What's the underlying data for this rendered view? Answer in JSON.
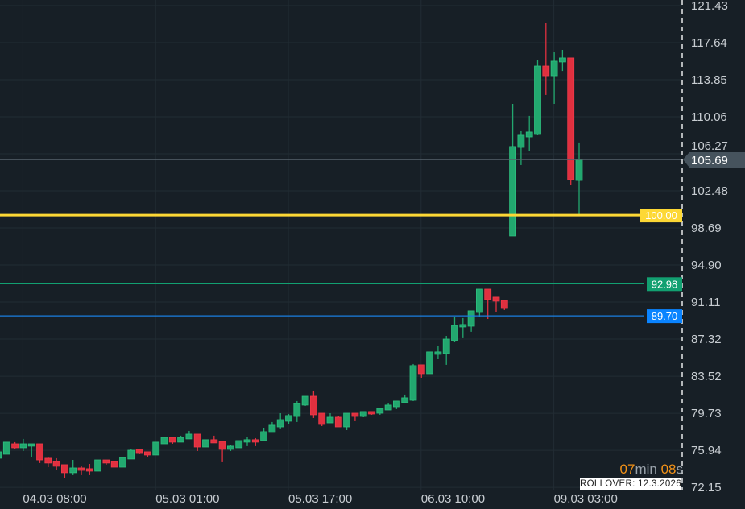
{
  "chart_data": {
    "type": "candlestick",
    "y_ticks": [
      "121.43",
      "117.64",
      "113.85",
      "110.06",
      "106.27",
      "102.48",
      "98.69",
      "94.90",
      "91.11",
      "87.32",
      "83.52",
      "79.73",
      "75.94",
      "72.15"
    ],
    "x_ticks": [
      {
        "label": "04.03 08:00",
        "candle": 3
      },
      {
        "label": "05.03 01:00",
        "candle": 19
      },
      {
        "label": "05.03 17:00",
        "candle": 35
      },
      {
        "label": "06.03 10:00",
        "candle": 51
      },
      {
        "label": "09.03 03:00",
        "candle": 67
      }
    ],
    "ylim": [
      72.15,
      121.43
    ],
    "grid": true,
    "colors": {
      "up": "#22a86f",
      "down": "#e0303f",
      "background": "#171f26",
      "grid": "#222c34"
    },
    "candles": [
      [
        75.13,
        75.79,
        75.13,
        75.79
      ],
      [
        75.54,
        76.78,
        75.54,
        76.78
      ],
      [
        76.61,
        76.78,
        76.12,
        76.2
      ],
      [
        76.2,
        77.11,
        75.87,
        76.61
      ],
      [
        76.37,
        76.61,
        75.29,
        76.61
      ],
      [
        76.61,
        76.61,
        74.64,
        74.96
      ],
      [
        75.13,
        75.29,
        74.22,
        74.64
      ],
      [
        74.8,
        75.13,
        73.97,
        74.31
      ],
      [
        74.47,
        74.47,
        73.07,
        73.65
      ],
      [
        73.65,
        74.96,
        73.4,
        74.14
      ],
      [
        74.14,
        74.31,
        73.4,
        73.89
      ],
      [
        74.06,
        74.55,
        73.4,
        73.81
      ],
      [
        73.81,
        74.96,
        73.81,
        74.96
      ],
      [
        74.96,
        74.96,
        74.47,
        74.64
      ],
      [
        74.8,
        74.8,
        74.22,
        74.22
      ],
      [
        74.22,
        75.21,
        74.22,
        75.21
      ],
      [
        75.05,
        76.04,
        75.05,
        75.95
      ],
      [
        76.04,
        76.04,
        75.54,
        75.62
      ],
      [
        75.79,
        75.79,
        75.29,
        75.46
      ],
      [
        75.46,
        76.78,
        75.46,
        76.78
      ],
      [
        76.61,
        77.27,
        76.61,
        77.27
      ],
      [
        77.27,
        77.27,
        76.61,
        76.78
      ],
      [
        76.78,
        77.44,
        76.78,
        77.27
      ],
      [
        77.11,
        77.93,
        77.11,
        77.6
      ],
      [
        77.6,
        77.6,
        75.87,
        76.28
      ],
      [
        76.28,
        77.03,
        76.28,
        77.03
      ],
      [
        77.03,
        77.44,
        76.7,
        76.7
      ],
      [
        76.86,
        76.86,
        74.72,
        76.04
      ],
      [
        76.04,
        76.45,
        75.87,
        76.37
      ],
      [
        76.2,
        76.94,
        76.2,
        76.94
      ],
      [
        76.78,
        77.27,
        76.37,
        77.03
      ],
      [
        77.03,
        77.19,
        76.37,
        76.78
      ],
      [
        76.94,
        78.18,
        76.94,
        77.85
      ],
      [
        77.77,
        78.84,
        77.77,
        78.51
      ],
      [
        78.34,
        79.74,
        78.1,
        79.08
      ],
      [
        78.92,
        79.66,
        78.59,
        79.5
      ],
      [
        79.41,
        80.98,
        78.84,
        80.73
      ],
      [
        80.57,
        81.47,
        80.49,
        81.47
      ],
      [
        81.47,
        82.05,
        79.25,
        79.58
      ],
      [
        79.74,
        79.74,
        78.42,
        78.59
      ],
      [
        78.75,
        79.74,
        78.75,
        79.33
      ],
      [
        79.33,
        79.41,
        78.34,
        78.34
      ],
      [
        78.34,
        79.74,
        78.01,
        79.74
      ],
      [
        79.74,
        79.74,
        78.92,
        79.41
      ],
      [
        79.41,
        79.91,
        79.33,
        79.91
      ],
      [
        79.91,
        79.91,
        79.58,
        79.66
      ],
      [
        79.74,
        80.24,
        79.58,
        80.24
      ],
      [
        80.07,
        80.73,
        80.07,
        80.57
      ],
      [
        80.4,
        80.98,
        80.16,
        80.98
      ],
      [
        80.82,
        81.64,
        80.73,
        81.31
      ],
      [
        81.06,
        84.77,
        80.98,
        84.61
      ],
      [
        84.69,
        84.69,
        83.37,
        83.78
      ],
      [
        83.78,
        86.01,
        83.78,
        86.01
      ],
      [
        85.76,
        86.58,
        85.26,
        86.01
      ],
      [
        85.84,
        87.65,
        84.69,
        87.32
      ],
      [
        87.16,
        89.55,
        86.99,
        88.72
      ],
      [
        88.56,
        89.47,
        87.41,
        88.81
      ],
      [
        88.64,
        90.21,
        88.07,
        90.21
      ],
      [
        90.04,
        92.43,
        89.55,
        92.43
      ],
      [
        92.43,
        92.43,
        89.38,
        91.36
      ],
      [
        91.61,
        91.61,
        90.04,
        91.2
      ],
      [
        91.28,
        91.28,
        90.29,
        90.45
      ],
      [
        97.87,
        111.38,
        97.87,
        107.02
      ],
      [
        106.93,
        108.58,
        105.12,
        108.17
      ],
      [
        108.0,
        110.15,
        106.6,
        108.5
      ],
      [
        108.25,
        115.83,
        108.17,
        115.25
      ],
      [
        115.25,
        119.62,
        112.29,
        114.26
      ],
      [
        114.26,
        116.65,
        111.38,
        115.75
      ],
      [
        115.67,
        116.9,
        114.75,
        116.08
      ],
      [
        116.08,
        116.08,
        103.06,
        103.64
      ],
      [
        103.55,
        107.43,
        100.09,
        105.69
      ]
    ],
    "candle_fields": [
      "open",
      "high",
      "low",
      "close"
    ],
    "price_lines": [
      {
        "value": 105.69,
        "label": "105.69",
        "color": "#56626c",
        "label_bg": "#46535d",
        "kind": "current-price"
      },
      {
        "value": 100.0,
        "label": "100.00",
        "color": "#fdd835",
        "label_bg": "#fdd835",
        "kind": "level"
      },
      {
        "value": 92.98,
        "label": "92.98",
        "color": "#12a071",
        "label_bg": "#12a071",
        "kind": "level"
      },
      {
        "value": 89.7,
        "label": "89.70",
        "color": "#1a7fe0",
        "label_bg": "#0a84ff",
        "kind": "level"
      }
    ]
  },
  "countdown": {
    "minutes": "07",
    "min_unit": "min",
    "seconds": "08",
    "sec_unit": "s"
  },
  "rollover": "ROLLOVER: 12.3.2026"
}
